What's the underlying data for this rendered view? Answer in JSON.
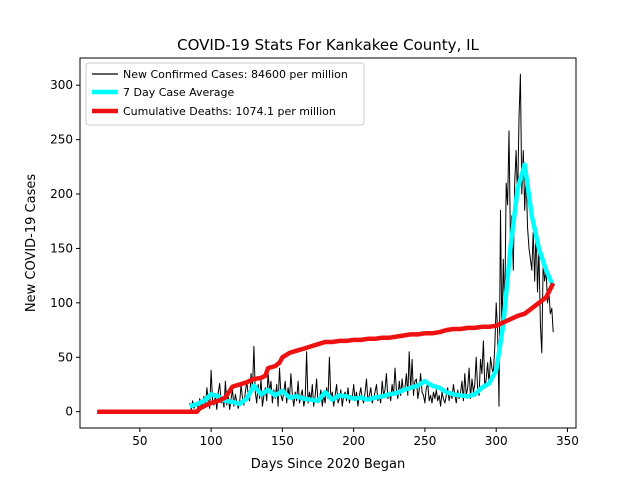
{
  "chart_data": {
    "type": "line",
    "title": "COVID-19 Stats For Kankakee County, IL",
    "xlabel": "Days Since 2020 Began",
    "ylabel": "New COVID-19 Cases",
    "xlim": [
      8,
      356
    ],
    "ylim": [
      -15,
      325
    ],
    "xticks": [
      50,
      100,
      150,
      200,
      250,
      300,
      350
    ],
    "yticks": [
      0,
      50,
      100,
      150,
      200,
      250,
      300
    ],
    "grid": false,
    "legend_position": "upper-left",
    "series": [
      {
        "name": "New Confirmed Cases: 84600 per million",
        "color": "#000000",
        "style": "thin",
        "x": [
          85,
          86,
          87,
          88,
          89,
          90,
          91,
          92,
          93,
          94,
          95,
          96,
          97,
          98,
          99,
          100,
          101,
          102,
          103,
          104,
          105,
          106,
          107,
          108,
          109,
          110,
          111,
          112,
          113,
          114,
          115,
          116,
          117,
          118,
          119,
          120,
          121,
          122,
          123,
          124,
          125,
          126,
          127,
          128,
          129,
          130,
          131,
          132,
          133,
          134,
          135,
          136,
          137,
          138,
          139,
          140,
          141,
          142,
          143,
          144,
          145,
          146,
          147,
          148,
          149,
          150,
          151,
          152,
          153,
          154,
          155,
          156,
          157,
          158,
          159,
          160,
          161,
          162,
          163,
          164,
          165,
          166,
          167,
          168,
          169,
          170,
          171,
          172,
          173,
          174,
          175,
          176,
          177,
          178,
          179,
          180,
          181,
          182,
          183,
          184,
          185,
          186,
          187,
          188,
          189,
          190,
          191,
          192,
          193,
          194,
          195,
          196,
          197,
          198,
          199,
          200,
          201,
          202,
          203,
          204,
          205,
          206,
          207,
          208,
          209,
          210,
          211,
          212,
          213,
          214,
          215,
          216,
          217,
          218,
          219,
          220,
          221,
          222,
          223,
          224,
          225,
          226,
          227,
          228,
          229,
          230,
          231,
          232,
          233,
          234,
          235,
          236,
          237,
          238,
          239,
          240,
          241,
          242,
          243,
          244,
          245,
          246,
          247,
          248,
          249,
          250,
          251,
          252,
          253,
          254,
          255,
          256,
          257,
          258,
          259,
          260,
          261,
          262,
          263,
          264,
          265,
          266,
          267,
          268,
          269,
          270,
          271,
          272,
          273,
          274,
          275,
          276,
          277,
          278,
          279,
          280,
          281,
          282,
          283,
          284,
          285,
          286,
          287,
          288,
          289,
          290,
          291,
          292,
          293,
          294,
          295,
          296,
          297,
          298,
          299,
          300,
          301,
          302,
          303,
          304,
          305,
          306,
          307,
          308,
          309,
          310,
          311,
          312,
          313,
          314,
          315,
          316,
          317,
          318,
          319,
          320,
          321,
          322,
          323,
          324,
          325,
          326,
          327,
          328,
          329,
          330,
          331,
          332,
          333,
          334,
          335,
          336,
          337,
          338,
          339,
          340
        ],
        "y": [
          8,
          2,
          10,
          3,
          6,
          9,
          1,
          12,
          4,
          8,
          14,
          5,
          22,
          9,
          3,
          38,
          10,
          6,
          15,
          2,
          18,
          26,
          8,
          12,
          4,
          28,
          6,
          15,
          2,
          12,
          20,
          5,
          16,
          9,
          3,
          8,
          25,
          12,
          6,
          18,
          28,
          15,
          10,
          35,
          22,
          60,
          18,
          8,
          25,
          12,
          30,
          5,
          15,
          22,
          10,
          35,
          18,
          28,
          8,
          20,
          12,
          25,
          5,
          40,
          15,
          10,
          18,
          28,
          8,
          22,
          12,
          35,
          15,
          5,
          18,
          10,
          28,
          8,
          15,
          20,
          5,
          12,
          55,
          8,
          18,
          10,
          25,
          5,
          15,
          30,
          8,
          12,
          20,
          5,
          15,
          8,
          22,
          12,
          50,
          10,
          18,
          5,
          15,
          25,
          8,
          12,
          20,
          5,
          15,
          18,
          10,
          22,
          8,
          15,
          12,
          25,
          10,
          18,
          5,
          15,
          22,
          12,
          8,
          18,
          30,
          10,
          15,
          22,
          8,
          12,
          18,
          25,
          10,
          15,
          8,
          28,
          15,
          20,
          35,
          12,
          18,
          10,
          25,
          15,
          40,
          20,
          12,
          28,
          15,
          30,
          18,
          22,
          35,
          15,
          55,
          20,
          48,
          15,
          28,
          30,
          12,
          20,
          35,
          18,
          15,
          8,
          22,
          25,
          10,
          15,
          8,
          18,
          12,
          20,
          10,
          15,
          5,
          18,
          12,
          8,
          15,
          22,
          10,
          18,
          12,
          25,
          15,
          8,
          20,
          12,
          18,
          28,
          10,
          35,
          15,
          22,
          40,
          12,
          30,
          18,
          25,
          50,
          20,
          15,
          48,
          35,
          65,
          22,
          30,
          45,
          25,
          50,
          40,
          35,
          60,
          100,
          75,
          5,
          185,
          70,
          140,
          90,
          210,
          190,
          258,
          160,
          180,
          130,
          210,
          240,
          195,
          270,
          310,
          200,
          240,
          185,
          220,
          170,
          150,
          140,
          130,
          165,
          120,
          170,
          110,
          150,
          80,
          54,
          140,
          120,
          130,
          100,
          110,
          90,
          95,
          73
        ]
      },
      {
        "name": "7 Day Case Average",
        "color": "#00ffff",
        "style": "thick",
        "x": [
          85,
          90,
          95,
          100,
          105,
          110,
          115,
          120,
          125,
          130,
          135,
          140,
          145,
          150,
          155,
          160,
          165,
          170,
          175,
          180,
          185,
          190,
          195,
          200,
          205,
          210,
          215,
          220,
          225,
          230,
          235,
          240,
          245,
          250,
          255,
          260,
          265,
          270,
          275,
          280,
          285,
          290,
          295,
          300,
          305,
          310,
          315,
          320,
          325,
          330,
          335,
          340
        ],
        "y": [
          5,
          7,
          10,
          16,
          14,
          10,
          9,
          7,
          12,
          24,
          16,
          20,
          15,
          19,
          13,
          14,
          12,
          11,
          10,
          18,
          11,
          15,
          14,
          12,
          13,
          11,
          13,
          14,
          16,
          17,
          20,
          22,
          24,
          28,
          24,
          22,
          18,
          16,
          15,
          14,
          16,
          22,
          26,
          38,
          80,
          150,
          205,
          227,
          180,
          150,
          130,
          115
        ]
      },
      {
        "name": "Cumulative Deaths: 1074.1 per million",
        "color": "#ee1111",
        "style": "thick",
        "x": [
          20,
          90,
          92,
          95,
          98,
          100,
          105,
          110,
          112,
          115,
          120,
          125,
          128,
          130,
          135,
          138,
          140,
          145,
          148,
          150,
          155,
          160,
          165,
          170,
          175,
          180,
          185,
          190,
          195,
          200,
          205,
          210,
          215,
          220,
          225,
          230,
          235,
          240,
          245,
          250,
          255,
          260,
          265,
          270,
          275,
          280,
          285,
          290,
          295,
          300,
          305,
          310,
          315,
          320,
          325,
          330,
          335,
          340
        ],
        "y": [
          0,
          0,
          3,
          5,
          7,
          8,
          10,
          13,
          17,
          23,
          25,
          27,
          29,
          30,
          31,
          33,
          40,
          42,
          45,
          50,
          54,
          56,
          58,
          60,
          62,
          64,
          64,
          65,
          65,
          66,
          66,
          67,
          67,
          68,
          68,
          69,
          70,
          71,
          71,
          72,
          72,
          73,
          75,
          76,
          76,
          77,
          77,
          78,
          78,
          79,
          82,
          85,
          88,
          90,
          95,
          100,
          105,
          118
        ]
      }
    ]
  }
}
